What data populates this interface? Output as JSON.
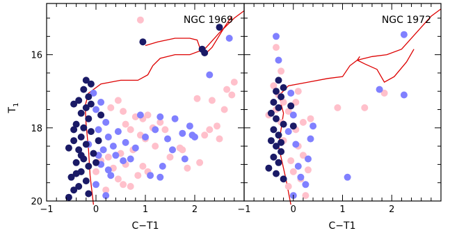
{
  "colors": {
    "pink": "#ffc0cb",
    "lavender": "#8080ff",
    "navy": "#1a1a66",
    "isochrone": "#dd0000",
    "frame": "#000000"
  },
  "chart_data": [
    {
      "type": "scatter",
      "title": "NGC 1969",
      "xlabel": "C−T1",
      "ylabel": "T",
      "ylabel_sub": "1",
      "xlim": [
        -1,
        3
      ],
      "ylim": [
        20,
        14.6
      ],
      "x_ticks": [
        -1,
        0,
        1,
        2
      ],
      "x_tick_labels": [
        "−1",
        "0",
        "1",
        "2"
      ],
      "y_ticks": [
        16,
        18,
        20
      ],
      "y_tick_labels": [
        "16",
        "18",
        "20"
      ],
      "series": [
        {
          "color_key": "pink",
          "points": [
            [
              0.9,
              15.05
            ],
            [
              0.3,
              17.45
            ],
            [
              0.45,
              17.25
            ],
            [
              0.55,
              17.55
            ],
            [
              0.6,
              17.9
            ],
            [
              0.7,
              18.05
            ],
            [
              0.8,
              17.7
            ],
            [
              0.9,
              18.2
            ],
            [
              0.95,
              17.75
            ],
            [
              1.0,
              18.3
            ],
            [
              1.05,
              17.65
            ],
            [
              1.15,
              18.0
            ],
            [
              1.3,
              17.85
            ],
            [
              1.4,
              18.05
            ],
            [
              1.2,
              18.5
            ],
            [
              0.25,
              18.8
            ],
            [
              0.35,
              19.1
            ],
            [
              0.45,
              19.4
            ],
            [
              0.5,
              18.7
            ],
            [
              0.6,
              19.0
            ],
            [
              0.7,
              19.6
            ],
            [
              0.75,
              18.6
            ],
            [
              0.85,
              19.3
            ],
            [
              0.95,
              19.05
            ],
            [
              1.05,
              19.2
            ],
            [
              0.2,
              19.7
            ],
            [
              0.3,
              20.05
            ],
            [
              0.55,
              19.55
            ],
            [
              1.5,
              18.8
            ],
            [
              1.7,
              18.55
            ],
            [
              1.85,
              19.1
            ],
            [
              2.2,
              18.2
            ],
            [
              2.3,
              18.05
            ],
            [
              2.1,
              18.95
            ],
            [
              2.5,
              18.3
            ],
            [
              2.6,
              17.5
            ],
            [
              2.35,
              17.25
            ],
            [
              2.45,
              17.95
            ],
            [
              2.65,
              16.95
            ],
            [
              2.75,
              17.1
            ],
            [
              2.8,
              16.75
            ],
            [
              2.05,
              17.2
            ],
            [
              0.0,
              19.2
            ],
            [
              0.1,
              18.9
            ],
            [
              1.75,
              18.6
            ]
          ]
        },
        {
          "color_key": "lavender",
          "points": [
            [
              2.3,
              16.55
            ],
            [
              2.7,
              15.55
            ],
            [
              0.0,
              17.5
            ],
            [
              0.05,
              18.05
            ],
            [
              0.2,
              17.85
            ],
            [
              0.25,
              18.25
            ],
            [
              0.35,
              18.5
            ],
            [
              0.45,
              18.1
            ],
            [
              0.6,
              18.4
            ],
            [
              0.7,
              18.85
            ],
            [
              0.8,
              18.55
            ],
            [
              0.9,
              17.65
            ],
            [
              1.0,
              18.25
            ],
            [
              1.1,
              19.3
            ],
            [
              1.2,
              18.05
            ],
            [
              1.3,
              17.7
            ],
            [
              1.35,
              19.05
            ],
            [
              1.45,
              18.3
            ],
            [
              1.55,
              18.6
            ],
            [
              1.6,
              17.75
            ],
            [
              1.75,
              18.15
            ],
            [
              1.8,
              18.85
            ],
            [
              1.9,
              17.95
            ],
            [
              2.0,
              18.25
            ],
            [
              0.0,
              19.55
            ],
            [
              0.1,
              19.0
            ],
            [
              0.15,
              18.6
            ],
            [
              0.2,
              19.85
            ],
            [
              0.3,
              19.3
            ],
            [
              0.4,
              18.75
            ],
            [
              0.1,
              17.3
            ],
            [
              1.3,
              19.35
            ],
            [
              1.35,
              20.05
            ],
            [
              -0.15,
              18.45
            ],
            [
              -0.05,
              17.05
            ],
            [
              0.25,
              19.15
            ],
            [
              1.95,
              18.2
            ],
            [
              0.55,
              18.9
            ],
            [
              0.05,
              18.75
            ]
          ]
        },
        {
          "color_key": "navy",
          "points": [
            [
              0.95,
              15.65
            ],
            [
              2.15,
              15.85
            ],
            [
              2.2,
              15.95
            ],
            [
              2.5,
              15.25
            ],
            [
              -0.2,
              16.7
            ],
            [
              -0.1,
              16.8
            ],
            [
              -0.25,
              16.95
            ],
            [
              -0.15,
              17.15
            ],
            [
              -0.35,
              17.25
            ],
            [
              -0.2,
              17.45
            ],
            [
              -0.3,
              17.6
            ],
            [
              -0.15,
              17.75
            ],
            [
              -0.4,
              17.9
            ],
            [
              -0.25,
              18.0
            ],
            [
              -0.1,
              18.1
            ],
            [
              -0.3,
              18.25
            ],
            [
              -0.45,
              18.35
            ],
            [
              -0.2,
              18.45
            ],
            [
              -0.35,
              18.6
            ],
            [
              -0.05,
              18.7
            ],
            [
              -0.25,
              18.85
            ],
            [
              -0.4,
              18.95
            ],
            [
              -0.15,
              19.05
            ],
            [
              -0.3,
              19.2
            ],
            [
              -0.5,
              19.35
            ],
            [
              -0.2,
              19.45
            ],
            [
              -0.35,
              19.6
            ],
            [
              -0.45,
              19.7
            ],
            [
              -0.15,
              19.8
            ],
            [
              -0.55,
              19.9
            ],
            [
              -0.65,
              20.05
            ],
            [
              -0.3,
              20.05
            ],
            [
              -0.4,
              19.25
            ],
            [
              -0.55,
              18.55
            ],
            [
              -0.45,
              17.35
            ],
            [
              -0.1,
              17.35
            ],
            [
              -0.3,
              18.75
            ],
            [
              -0.2,
              19.95
            ],
            [
              0.05,
              18.35
            ],
            [
              0.0,
              18.95
            ],
            [
              -0.45,
              18.05
            ],
            [
              0.1,
              17.65
            ]
          ]
        }
      ],
      "isochrone": [
        [
          -0.05,
          20.1
        ],
        [
          -0.12,
          19.3
        ],
        [
          -0.15,
          18.6
        ],
        [
          -0.2,
          17.9
        ],
        [
          -0.22,
          17.4
        ],
        [
          -0.15,
          17.05
        ],
        [
          0.1,
          16.8
        ],
        [
          0.5,
          16.7
        ],
        [
          0.85,
          16.7
        ],
        [
          1.05,
          16.55
        ],
        [
          1.15,
          16.3
        ],
        [
          1.3,
          16.1
        ],
        [
          1.6,
          16.0
        ],
        [
          1.9,
          16.0
        ],
        [
          2.2,
          15.85
        ],
        [
          2.5,
          15.4
        ],
        [
          2.8,
          15.0
        ],
        [
          3.0,
          14.8
        ]
      ],
      "isochrone_loop": [
        [
          1.0,
          15.75
        ],
        [
          1.25,
          15.65
        ],
        [
          1.6,
          15.55
        ],
        [
          1.9,
          15.55
        ],
        [
          2.05,
          15.6
        ],
        [
          2.1,
          15.8
        ],
        [
          2.2,
          16.0
        ],
        [
          2.35,
          15.8
        ],
        [
          2.6,
          15.25
        ],
        [
          2.75,
          14.95
        ]
      ]
    },
    {
      "type": "scatter",
      "title": "NGC 1972",
      "xlabel": "C−T1",
      "xlim": [
        -1,
        3
      ],
      "ylim": [
        20,
        14.6
      ],
      "x_ticks": [
        -1,
        0,
        1,
        2
      ],
      "x_tick_labels": [
        "−1",
        "0",
        "1",
        "2"
      ],
      "series": [
        {
          "color_key": "pink",
          "points": [
            [
              -0.35,
              15.8
            ],
            [
              -0.25,
              16.45
            ],
            [
              -0.4,
              16.85
            ],
            [
              -0.3,
              17.1
            ],
            [
              -0.2,
              17.3
            ],
            [
              -0.35,
              17.5
            ],
            [
              -0.5,
              17.65
            ],
            [
              -0.25,
              17.85
            ],
            [
              -0.1,
              17.55
            ],
            [
              0.05,
              17.3
            ],
            [
              0.1,
              17.0
            ],
            [
              0.05,
              18.05
            ],
            [
              -0.2,
              18.35
            ],
            [
              0.1,
              18.5
            ],
            [
              0.2,
              18.75
            ],
            [
              0.3,
              19.15
            ],
            [
              0.15,
              19.4
            ],
            [
              0.0,
              19.2
            ],
            [
              -0.1,
              19.6
            ],
            [
              0.25,
              19.85
            ],
            [
              0.4,
              19.95
            ],
            [
              0.45,
              20.05
            ],
            [
              0.9,
              17.45
            ],
            [
              1.45,
              17.45
            ],
            [
              1.85,
              17.05
            ],
            [
              0.2,
              17.85
            ],
            [
              -0.05,
              18.9
            ],
            [
              0.35,
              17.75
            ]
          ]
        },
        {
          "color_key": "lavender",
          "points": [
            [
              -0.35,
              15.5
            ],
            [
              -0.3,
              16.15
            ],
            [
              2.25,
              15.45
            ],
            [
              -0.05,
              17.05
            ],
            [
              0.0,
              17.65
            ],
            [
              -0.1,
              18.1
            ],
            [
              0.05,
              18.45
            ],
            [
              0.1,
              19.05
            ],
            [
              0.15,
              19.35
            ],
            [
              0.25,
              19.55
            ],
            [
              0.3,
              18.85
            ],
            [
              0.0,
              19.85
            ],
            [
              0.35,
              18.3
            ],
            [
              1.1,
              19.35
            ],
            [
              1.75,
              16.95
            ],
            [
              2.25,
              17.1
            ],
            [
              0.4,
              17.95
            ]
          ]
        },
        {
          "color_key": "navy",
          "points": [
            [
              -0.3,
              16.7
            ],
            [
              -0.2,
              16.9
            ],
            [
              -0.35,
              17.0
            ],
            [
              -0.25,
              17.15
            ],
            [
              -0.4,
              17.3
            ],
            [
              -0.3,
              17.45
            ],
            [
              -0.45,
              17.6
            ],
            [
              -0.35,
              17.75
            ],
            [
              -0.2,
              17.9
            ],
            [
              -0.4,
              18.05
            ],
            [
              -0.3,
              18.2
            ],
            [
              -0.45,
              18.35
            ],
            [
              -0.35,
              18.5
            ],
            [
              -0.25,
              18.65
            ],
            [
              -0.4,
              18.8
            ],
            [
              -0.3,
              18.95
            ],
            [
              -0.5,
              19.1
            ],
            [
              -0.35,
              19.25
            ],
            [
              -0.2,
              19.4
            ],
            [
              0.0,
              17.95
            ],
            [
              -0.05,
              17.4
            ],
            [
              -0.6,
              19.95
            ],
            [
              -0.55,
              20.1
            ],
            [
              0.1,
              20.05
            ],
            [
              -0.25,
              18.4
            ]
          ]
        }
      ],
      "isochrone": [
        [
          -0.25,
          17.35
        ],
        [
          -0.2,
          17.6
        ],
        [
          -0.3,
          18.5
        ],
        [
          -0.15,
          19.4
        ],
        [
          -0.05,
          20.1
        ]
      ],
      "isochrone_upper": [
        [
          -0.25,
          17.35
        ],
        [
          -0.28,
          17.1
        ],
        [
          -0.1,
          16.85
        ],
        [
          0.3,
          16.75
        ],
        [
          0.7,
          16.65
        ],
        [
          1.0,
          16.6
        ],
        [
          1.15,
          16.3
        ],
        [
          1.3,
          16.15
        ],
        [
          1.6,
          16.05
        ],
        [
          1.9,
          16.0
        ],
        [
          2.2,
          15.85
        ],
        [
          2.5,
          15.4
        ],
        [
          2.8,
          14.95
        ],
        [
          3.0,
          14.75
        ]
      ],
      "isochrone_loop": [
        [
          1.35,
          16.05
        ],
        [
          1.3,
          16.15
        ],
        [
          1.45,
          16.25
        ],
        [
          1.7,
          16.4
        ],
        [
          1.85,
          16.75
        ],
        [
          2.05,
          16.6
        ],
        [
          2.3,
          16.2
        ],
        [
          2.45,
          15.85
        ]
      ]
    }
  ]
}
